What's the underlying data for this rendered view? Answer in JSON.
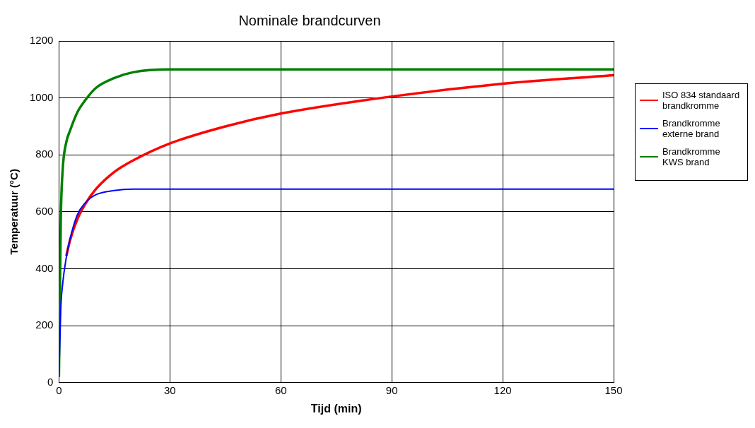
{
  "chart_data": {
    "type": "line",
    "title": "Nominale brandcurven",
    "xlabel": "Tijd (min)",
    "ylabel": "Temperatuur (°C)",
    "xlim": [
      0,
      150
    ],
    "xticks": [
      0,
      30,
      60,
      90,
      120,
      150
    ],
    "ylim": [
      0,
      1200
    ],
    "yticks": [
      0,
      200,
      400,
      600,
      800,
      1000,
      1200
    ],
    "grid": true,
    "legend": "right",
    "marker": "none",
    "line_style": "solid",
    "series": [
      {
        "name": "ISO 834 standaard brandkromme",
        "color": "#ff0000",
        "x": [
          2,
          3,
          5,
          7,
          10,
          15,
          20,
          30,
          45,
          60,
          90,
          120,
          150
        ],
        "values": [
          445,
          500,
          575,
          625,
          680,
          740,
          780,
          840,
          900,
          945,
          1005,
          1050,
          1080
        ]
      },
      {
        "name": "Brandkromme externe brand",
        "color": "#0000ff",
        "x": [
          0,
          0.5,
          1,
          2,
          3,
          5,
          7,
          10,
          15,
          20,
          30,
          60,
          90,
          120,
          150
        ],
        "values": [
          20,
          260,
          345,
          440,
          505,
          590,
          630,
          660,
          675,
          680,
          680,
          680,
          680,
          680,
          680
        ]
      },
      {
        "name": "Brandkromme KWS brand",
        "color": "#008000",
        "x": [
          0,
          0.5,
          1,
          2,
          3,
          5,
          7,
          10,
          15,
          20,
          30,
          60,
          90,
          120,
          150
        ],
        "values": [
          20,
          570,
          745,
          845,
          885,
          950,
          990,
          1035,
          1070,
          1090,
          1100,
          1100,
          1100,
          1100,
          1100
        ]
      }
    ]
  }
}
